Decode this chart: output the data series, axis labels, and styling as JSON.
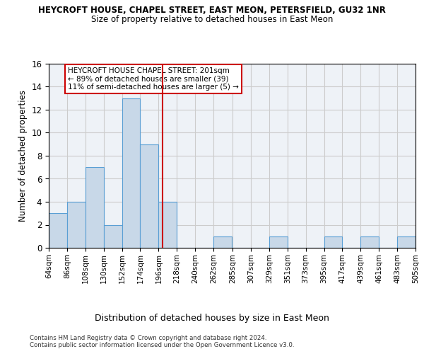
{
  "title1": "HEYCROFT HOUSE, CHAPEL STREET, EAST MEON, PETERSFIELD, GU32 1NR",
  "title2": "Size of property relative to detached houses in East Meon",
  "xlabel": "Distribution of detached houses by size in East Meon",
  "ylabel": "Number of detached properties",
  "footnote1": "Contains HM Land Registry data © Crown copyright and database right 2024.",
  "footnote2": "Contains public sector information licensed under the Open Government Licence v3.0.",
  "bins": [
    64,
    86,
    108,
    130,
    152,
    174,
    196,
    218,
    240,
    262,
    285,
    307,
    329,
    351,
    373,
    395,
    417,
    439,
    461,
    483,
    505
  ],
  "bin_labels": [
    "64sqm",
    "86sqm",
    "108sqm",
    "130sqm",
    "152sqm",
    "174sqm",
    "196sqm",
    "218sqm",
    "240sqm",
    "262sqm",
    "285sqm",
    "307sqm",
    "329sqm",
    "351sqm",
    "373sqm",
    "395sqm",
    "417sqm",
    "439sqm",
    "461sqm",
    "483sqm",
    "505sqm"
  ],
  "counts": [
    3,
    4,
    7,
    2,
    13,
    9,
    4,
    0,
    0,
    1,
    0,
    0,
    1,
    0,
    0,
    1,
    0,
    1,
    0,
    1
  ],
  "bar_color": "#c8d8e8",
  "bar_edge_color": "#5a9fd4",
  "property_size": 201,
  "vline_color": "#cc0000",
  "annotation_line1": "HEYCROFT HOUSE CHAPEL STREET: 201sqm",
  "annotation_line2": "← 89% of detached houses are smaller (39)",
  "annotation_line3": "11% of semi-detached houses are larger (5) →",
  "annotation_box_color": "#ffffff",
  "annotation_box_edge": "#cc0000",
  "ylim": [
    0,
    16
  ],
  "yticks": [
    0,
    2,
    4,
    6,
    8,
    10,
    12,
    14,
    16
  ],
  "grid_color": "#cccccc",
  "background_color": "#eef2f7",
  "fig_background": "#ffffff"
}
